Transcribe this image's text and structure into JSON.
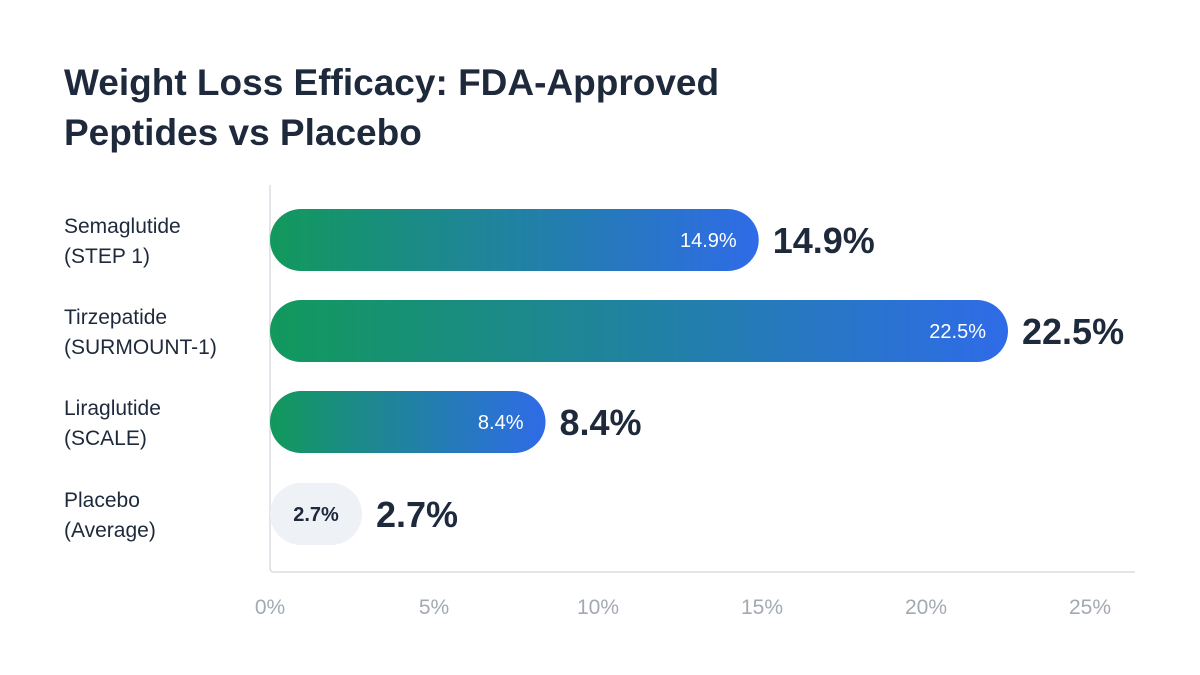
{
  "chart_data": {
    "type": "bar",
    "orientation": "horizontal",
    "title": "Weight Loss Efficacy: FDA-Approved Peptides vs Placebo",
    "categories": [
      [
        "Semaglutide",
        "(STEP 1)"
      ],
      [
        "Tirzepatide",
        "(SURMOUNT-1)"
      ],
      [
        "Liraglutide",
        "(SCALE)"
      ],
      [
        "Placebo",
        "(Average)"
      ]
    ],
    "values": [
      14.9,
      22.5,
      8.4,
      2.7
    ],
    "value_labels": [
      "14.9%",
      "22.5%",
      "8.4%",
      "2.7%"
    ],
    "xlim": [
      0,
      25
    ],
    "xticks": [
      "0%",
      "5%",
      "10%",
      "15%",
      "20%",
      "25%"
    ],
    "grid": false,
    "colors": {
      "gradient_start": "#12995c",
      "gradient_end": "#2f6be8",
      "placebo": "#eef1f6",
      "text": "#1e293b",
      "axis": "#d9dde3",
      "tick": "#a3a9b3"
    }
  }
}
